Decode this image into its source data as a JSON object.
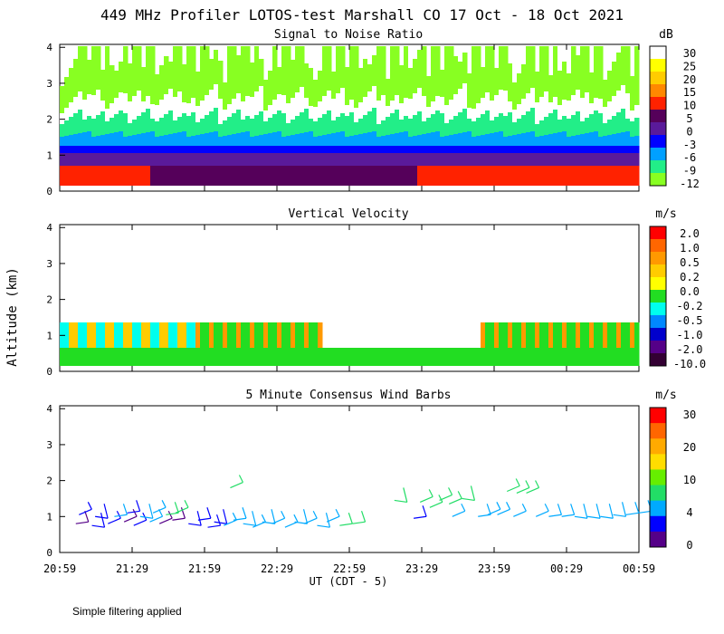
{
  "title": "449 MHz Profiler LOTOS-test Marshall CO 17 Oct - 18 Oct 2021",
  "y_axis_label": "Altitude (km)",
  "x_axis_label": "UT  (CDT - 5)",
  "footer": "Simple filtering applied",
  "chart_data": [
    {
      "type": "heatmap",
      "title": "Signal to Noise Ratio",
      "ylim": [
        0,
        4
      ],
      "yticks": [
        "0",
        "1",
        "2",
        "3",
        "4"
      ],
      "colorbar": {
        "unit": "dB",
        "labels": [
          "30",
          "25",
          "20",
          "15",
          "10",
          "5",
          "0",
          "-3",
          "-6",
          "-9",
          "-12"
        ],
        "colors": [
          "#ffffff",
          "#ffff00",
          "#ffcc00",
          "#ff8800",
          "#ff2200",
          "#55005a",
          "#5a1a9a",
          "#0000ff",
          "#00a0ff",
          "#22ee88",
          "#88ff22"
        ]
      }
    },
    {
      "type": "heatmap",
      "title": "Vertical Velocity",
      "ylim": [
        0,
        4
      ],
      "yticks": [
        "0",
        "1",
        "2",
        "3",
        "4"
      ],
      "colorbar": {
        "unit": "m/s",
        "labels": [
          "2.0",
          "1.0",
          "0.5",
          "0.2",
          "0.0",
          "-0.2",
          "-0.5",
          "-1.0",
          "-2.0",
          "-10.0"
        ],
        "colors": [
          "#ff0000",
          "#ff6600",
          "#ff9900",
          "#ffcc00",
          "#ffff00",
          "#22dd22",
          "#00ffee",
          "#0088ff",
          "#0000cc",
          "#550088",
          "#330033"
        ]
      }
    },
    {
      "type": "scatter",
      "title": "5 Minute Consensus Wind Barbs",
      "ylim": [
        0,
        4
      ],
      "yticks": [
        "0",
        "1",
        "2",
        "3",
        "4"
      ],
      "colorbar": {
        "unit": "m/s",
        "labels": [
          "30",
          "20",
          "10",
          "4",
          "0"
        ],
        "colors": [
          "#ff0000",
          "#ff6600",
          "#ffaa00",
          "#ffdd00",
          "#66ee00",
          "#22dd66",
          "#00aaff",
          "#0000ff",
          "#550088"
        ]
      },
      "barbs": [
        {
          "t": 0.5,
          "alt": 0.7,
          "speed": 1
        },
        {
          "t": 0.6,
          "alt": 0.95,
          "speed": 3
        },
        {
          "t": 1.0,
          "alt": 0.65,
          "speed": 2
        },
        {
          "t": 1.1,
          "alt": 0.9,
          "speed": 5
        },
        {
          "t": 1.5,
          "alt": 0.7,
          "speed": 3
        },
        {
          "t": 1.7,
          "alt": 0.9,
          "speed": 7
        },
        {
          "t": 2.0,
          "alt": 0.75,
          "speed": 0
        },
        {
          "t": 2.1,
          "alt": 1.0,
          "speed": 4
        },
        {
          "t": 2.3,
          "alt": 0.65,
          "speed": 3
        },
        {
          "t": 2.5,
          "alt": 0.9,
          "speed": 8
        },
        {
          "t": 2.8,
          "alt": 0.75,
          "speed": 6
        },
        {
          "t": 2.9,
          "alt": 1.0,
          "speed": 9
        },
        {
          "t": 3.1,
          "alt": 0.7,
          "speed": 0
        },
        {
          "t": 3.3,
          "alt": 0.95,
          "speed": 10
        },
        {
          "t": 3.5,
          "alt": 0.8,
          "speed": 1
        },
        {
          "t": 3.6,
          "alt": 1.0,
          "speed": 12
        },
        {
          "t": 4.0,
          "alt": 0.7,
          "speed": 2
        },
        {
          "t": 4.3,
          "alt": 0.8,
          "speed": 4
        },
        {
          "t": 4.6,
          "alt": 0.6,
          "speed": 4
        },
        {
          "t": 4.8,
          "alt": 0.75,
          "speed": 5
        },
        {
          "t": 5.1,
          "alt": 0.65,
          "speed": 6
        },
        {
          "t": 5.3,
          "alt": 1.7,
          "speed": 12
        },
        {
          "t": 5.4,
          "alt": 0.8,
          "speed": 7
        },
        {
          "t": 5.7,
          "alt": 0.7,
          "speed": 8
        },
        {
          "t": 6.0,
          "alt": 0.6,
          "speed": 9
        },
        {
          "t": 6.3,
          "alt": 0.75,
          "speed": 8
        },
        {
          "t": 6.6,
          "alt": 0.7,
          "speed": 9
        },
        {
          "t": 7.0,
          "alt": 0.6,
          "speed": 9
        },
        {
          "t": 7.3,
          "alt": 0.75,
          "speed": 8
        },
        {
          "t": 7.6,
          "alt": 0.7,
          "speed": 9
        },
        {
          "t": 8.0,
          "alt": 0.65,
          "speed": 8
        },
        {
          "t": 8.3,
          "alt": 0.75,
          "speed": 9
        },
        {
          "t": 8.7,
          "alt": 0.65,
          "speed": 10
        },
        {
          "t": 9.1,
          "alt": 0.7,
          "speed": 10
        },
        {
          "t": 10.4,
          "alt": 1.35,
          "speed": 11
        },
        {
          "t": 11.0,
          "alt": 0.85,
          "speed": 4
        },
        {
          "t": 11.2,
          "alt": 1.3,
          "speed": 12
        },
        {
          "t": 11.5,
          "alt": 1.15,
          "speed": 12
        },
        {
          "t": 11.8,
          "alt": 1.35,
          "speed": 12
        },
        {
          "t": 12.1,
          "alt": 1.25,
          "speed": 12
        },
        {
          "t": 12.2,
          "alt": 0.9,
          "speed": 6
        },
        {
          "t": 12.5,
          "alt": 1.4,
          "speed": 11
        },
        {
          "t": 13.0,
          "alt": 0.9,
          "speed": 7
        },
        {
          "t": 13.3,
          "alt": 0.95,
          "speed": 6
        },
        {
          "t": 13.6,
          "alt": 0.95,
          "speed": 6
        },
        {
          "t": 13.9,
          "alt": 1.6,
          "speed": 12
        },
        {
          "t": 14.1,
          "alt": 0.9,
          "speed": 6
        },
        {
          "t": 14.2,
          "alt": 1.55,
          "speed": 12
        },
        {
          "t": 14.5,
          "alt": 1.55,
          "speed": 12
        },
        {
          "t": 14.8,
          "alt": 0.9,
          "speed": 6
        },
        {
          "t": 15.2,
          "alt": 0.9,
          "speed": 7
        },
        {
          "t": 15.6,
          "alt": 0.9,
          "speed": 7
        },
        {
          "t": 16.0,
          "alt": 0.9,
          "speed": 8
        },
        {
          "t": 16.4,
          "alt": 0.9,
          "speed": 8
        },
        {
          "t": 16.8,
          "alt": 0.9,
          "speed": 8
        },
        {
          "t": 17.2,
          "alt": 0.95,
          "speed": 8
        },
        {
          "t": 17.6,
          "alt": 0.95,
          "speed": 7
        },
        {
          "t": 18.0,
          "alt": 1.0,
          "speed": 7
        }
      ]
    }
  ],
  "x_ticks": [
    "20:59",
    "21:29",
    "21:59",
    "22:29",
    "22:59",
    "23:29",
    "23:59",
    "00:29",
    "00:59"
  ]
}
